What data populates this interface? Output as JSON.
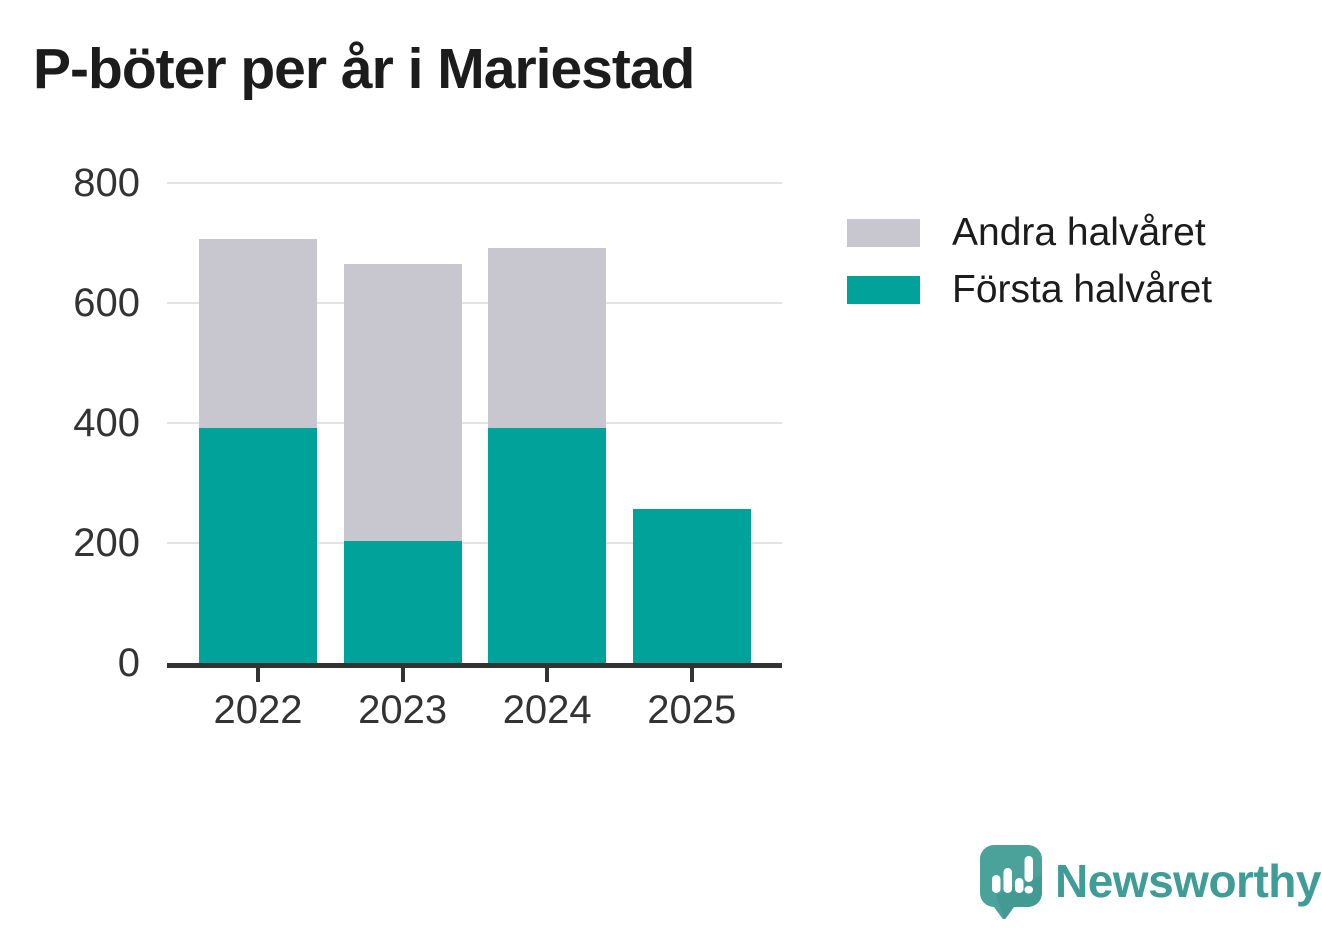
{
  "title": "P-böter per år i Mariestad",
  "legend": [
    {
      "label": "Andra halvåret",
      "color": "#c8c6cf"
    },
    {
      "label": "Första halvåret",
      "color": "#00a29a"
    }
  ],
  "chart_data": {
    "type": "bar",
    "stacked": true,
    "title": "P-böter per år i Mariestad",
    "categories": [
      "2022",
      "2023",
      "2024",
      "2025"
    ],
    "series": [
      {
        "name": "Första halvåret",
        "color": "#00a29a",
        "values": [
          391,
          203,
          392,
          257
        ]
      },
      {
        "name": "Andra halvåret",
        "color": "#c8c6cf",
        "values": [
          315,
          462,
          299,
          0
        ]
      }
    ],
    "totals": [
      706,
      665,
      691,
      257
    ],
    "xlabel": "",
    "ylabel": "",
    "ylim": [
      0,
      800
    ],
    "yticks": [
      0,
      200,
      400,
      600,
      800
    ],
    "grid": true,
    "legend_position": "right",
    "axis_color": "#333333",
    "gridline_color": "#e3e3e3"
  },
  "branding": {
    "name": "Newsworthy",
    "icon": "newsworthy-speech-bubble-bar-chart-icon",
    "icon_color": "#4ba29b",
    "word_color": "#3f9c96"
  }
}
